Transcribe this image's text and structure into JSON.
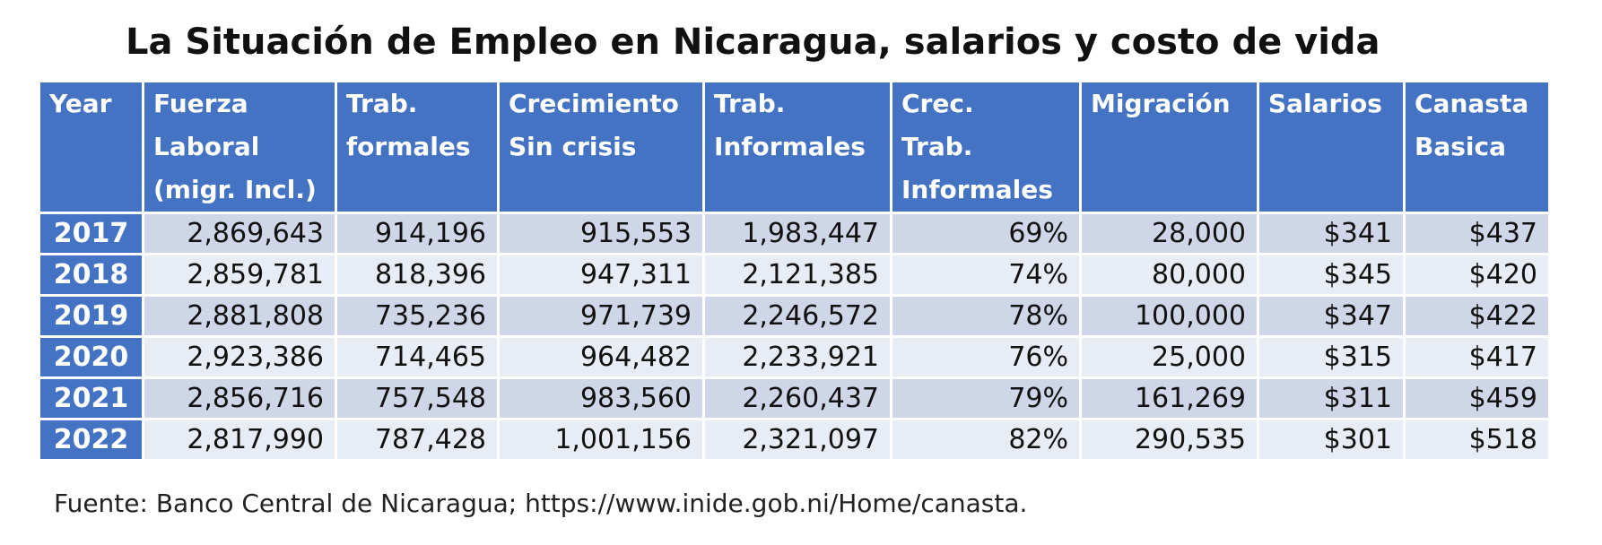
{
  "title": "La Situación de Empleo en Nicaragua, salarios y costo de vida",
  "source": "Fuente: Banco Central de Nicaragua; https://www.inide.gob.ni/Home/canasta.",
  "colors": {
    "header_bg": "#4573c4",
    "header_text": "#ffffff",
    "row_odd_bg": "#cfd6e8",
    "row_even_bg": "#e8ecf4"
  },
  "chart_data": {
    "type": "table",
    "title": "La Situación de Empleo en Nicaragua, salarios y costo de vida",
    "headers": [
      [
        "Year"
      ],
      [
        "Fuerza",
        "Laboral",
        "(migr. Incl.)"
      ],
      [
        "Trab.",
        "formales"
      ],
      [
        "Crecimiento",
        "Sin crisis"
      ],
      [
        "Trab.",
        "Informales"
      ],
      [
        "Crec.",
        "Trab.",
        "Informales"
      ],
      [
        "Migración"
      ],
      [
        "Salarios"
      ],
      [
        "Canasta",
        "Basica"
      ]
    ],
    "rows": [
      [
        "2017",
        "2,869,643",
        "914,196",
        "915,553",
        "1,983,447",
        "69%",
        "28,000",
        "$341",
        "$437"
      ],
      [
        "2018",
        "2,859,781",
        "818,396",
        "947,311",
        "2,121,385",
        "74%",
        "80,000",
        "$345",
        "$420"
      ],
      [
        "2019",
        "2,881,808",
        "735,236",
        "971,739",
        "2,246,572",
        "78%",
        "100,000",
        "$347",
        "$422"
      ],
      [
        "2020",
        "2,923,386",
        "714,465",
        "964,482",
        "2,233,921",
        "76%",
        "25,000",
        "$315",
        "$417"
      ],
      [
        "2021",
        "2,856,716",
        "757,548",
        "983,560",
        "2,260,437",
        "79%",
        "161,269",
        "$311",
        "$459"
      ],
      [
        "2022",
        "2,817,990",
        "787,428",
        "1,001,156",
        "2,321,097",
        "82%",
        "290,535",
        "$301",
        "$518"
      ]
    ],
    "source": "Fuente: Banco Central de Nicaragua; https://www.inide.gob.ni/Home/canasta."
  }
}
